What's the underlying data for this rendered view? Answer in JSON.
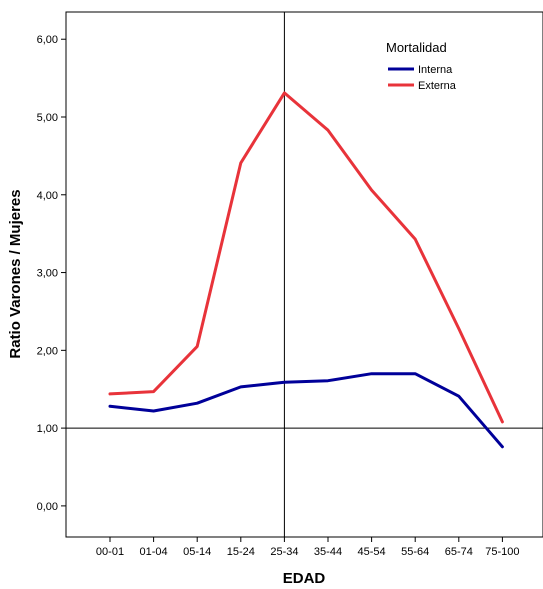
{
  "chart_data": {
    "type": "line",
    "title": "",
    "xlabel": "EDAD",
    "ylabel": "Ratio Varones / Mujeres",
    "categories": [
      "00-01",
      "01-04",
      "05-14",
      "15-24",
      "25-34",
      "35-44",
      "45-54",
      "55-64",
      "65-74",
      "75-100"
    ],
    "ylim": [
      -0.4,
      6.35
    ],
    "yticks": [
      0.0,
      1.0,
      2.0,
      3.0,
      4.0,
      5.0,
      6.0
    ],
    "ytick_labels": [
      "0,00",
      "1,00",
      "2,00",
      "3,00",
      "4,00",
      "5,00",
      "6,00"
    ],
    "reference_lines": {
      "y": 1.0,
      "x_category": "25-34"
    },
    "legend": {
      "title": "Mortalidad",
      "position": "top-right"
    },
    "grid": false,
    "series": [
      {
        "name": "Interna",
        "color": "#000099",
        "values": [
          1.28,
          1.22,
          1.32,
          1.53,
          1.59,
          1.61,
          1.7,
          1.7,
          1.41,
          0.76
        ]
      },
      {
        "name": "Externa",
        "color": "#E8333A",
        "values": [
          1.44,
          1.47,
          2.05,
          4.41,
          5.31,
          4.83,
          4.06,
          3.43,
          2.28,
          1.08
        ]
      }
    ]
  }
}
